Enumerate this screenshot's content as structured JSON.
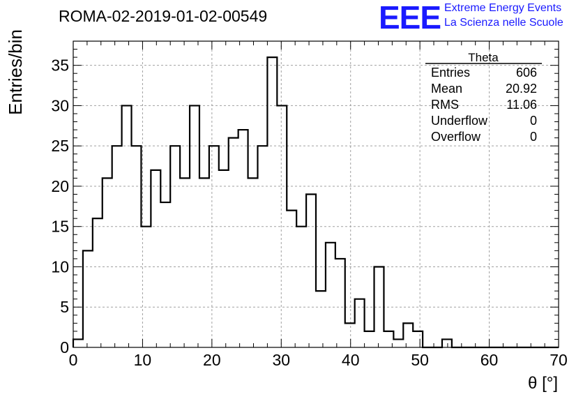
{
  "title": "ROMA-02-2019-01-02-00549",
  "logo": {
    "mark": "EEE",
    "line1": "Extreme Energy Events",
    "line2": "La Scienza nelle Scuole"
  },
  "stats": {
    "name": "Theta",
    "rows": [
      {
        "label": "Entries",
        "value": "606"
      },
      {
        "label": "Mean",
        "value": "20.92"
      },
      {
        "label": "RMS",
        "value": "11.06"
      },
      {
        "label": "Underflow",
        "value": "0"
      },
      {
        "label": "Overflow",
        "value": "0"
      }
    ]
  },
  "chart_data": {
    "type": "histogram",
    "xlabel": "θ [°]",
    "ylabel": "Entries/bin",
    "xlim": [
      0,
      70
    ],
    "ylim": [
      0,
      38
    ],
    "xticks": [
      0,
      10,
      20,
      30,
      40,
      50,
      60,
      70
    ],
    "yticks": [
      0,
      5,
      10,
      15,
      20,
      25,
      30,
      35
    ],
    "bin_width": 1.4,
    "grid": true,
    "values": [
      1,
      12,
      16,
      21,
      25,
      30,
      25,
      15,
      22,
      18,
      25,
      21,
      30,
      21,
      25,
      22,
      26,
      27,
      21,
      25,
      36,
      30,
      17,
      15,
      19,
      7,
      13,
      11,
      3,
      6,
      2,
      10,
      2,
      1,
      3,
      2,
      0,
      0,
      1,
      0,
      0,
      0,
      0,
      0,
      0,
      0,
      0,
      0,
      0,
      0
    ]
  }
}
